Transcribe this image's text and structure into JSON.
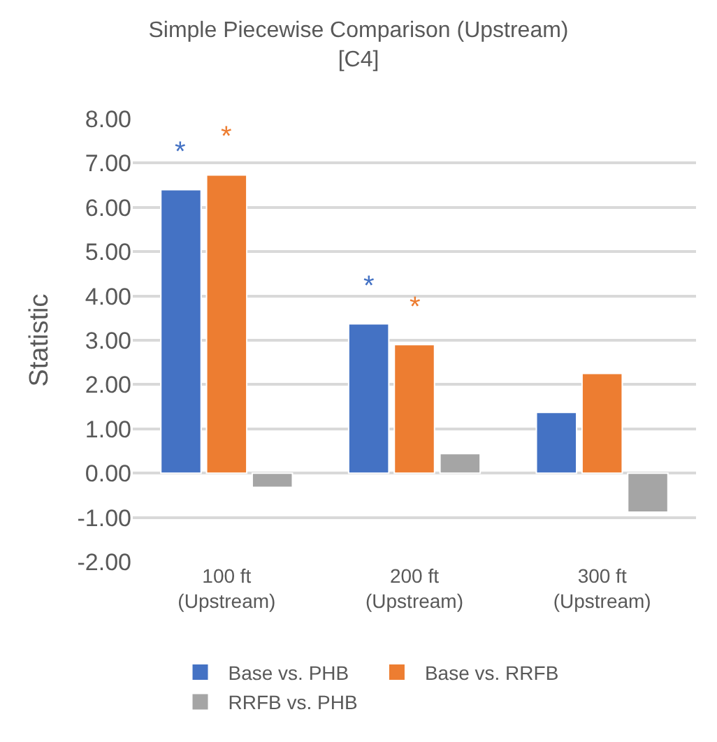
{
  "chart_data": {
    "type": "bar",
    "title": "Simple Piecewise Comparison (Upstream)\n[C4]",
    "ylabel": "Statistic",
    "categories": [
      "100 ft\n(Upstream)",
      "200 ft\n(Upstream)",
      "300 ft\n(Upstream)"
    ],
    "series": [
      {
        "name": "Base vs. PHB",
        "color": "#4472c4",
        "values": [
          6.4,
          3.37,
          1.37
        ]
      },
      {
        "name": "Base vs. RRFB",
        "color": "#ed7d31",
        "values": [
          6.73,
          2.9,
          2.25
        ]
      },
      {
        "name": "RRFB vs. PHB",
        "color": "#a5a5a5",
        "values": [
          -0.32,
          0.44,
          -0.88
        ]
      }
    ],
    "ylim": [
      -2,
      8
    ],
    "yticks": [
      {
        "value": -2,
        "label": "-2.00"
      },
      {
        "value": -1,
        "label": "-1.00"
      },
      {
        "value": 0,
        "label": "0.00"
      },
      {
        "value": 1,
        "label": "1.00"
      },
      {
        "value": 2,
        "label": "2.00"
      },
      {
        "value": 3,
        "label": "3.00"
      },
      {
        "value": 4,
        "label": "4.00"
      },
      {
        "value": 5,
        "label": "5.00"
      },
      {
        "value": 6,
        "label": "6.00"
      },
      {
        "value": 7,
        "label": "7.00"
      },
      {
        "value": 8,
        "label": "8.00"
      }
    ],
    "grid": "y",
    "legend": "bottom",
    "annotations": [
      "*",
      "*",
      "*",
      "*"
    ]
  }
}
